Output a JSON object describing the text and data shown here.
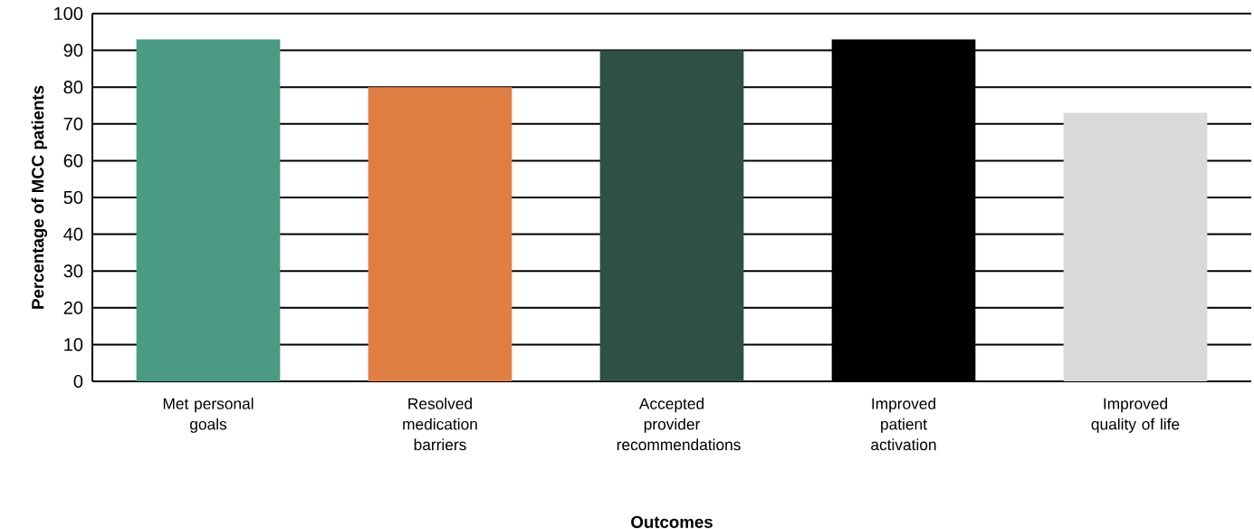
{
  "chart_data": {
    "type": "bar",
    "xlabel": "Outcomes",
    "ylabel": "Percentage of MCC patients",
    "categories": [
      "Met personal goals",
      "Resolved medication barriers",
      "Accepted provider recommendations",
      "Improved patient activation",
      "Improved quality of life"
    ],
    "values": [
      93,
      80,
      90,
      93,
      73
    ],
    "colors": [
      "#4a9a84",
      "#e07f43",
      "#2e5047",
      "#000000",
      "#d9d9d9"
    ],
    "ylim": [
      0,
      100
    ],
    "yticks": [
      0,
      10,
      20,
      30,
      40,
      50,
      60,
      70,
      80,
      90,
      100
    ],
    "grid": "y"
  }
}
